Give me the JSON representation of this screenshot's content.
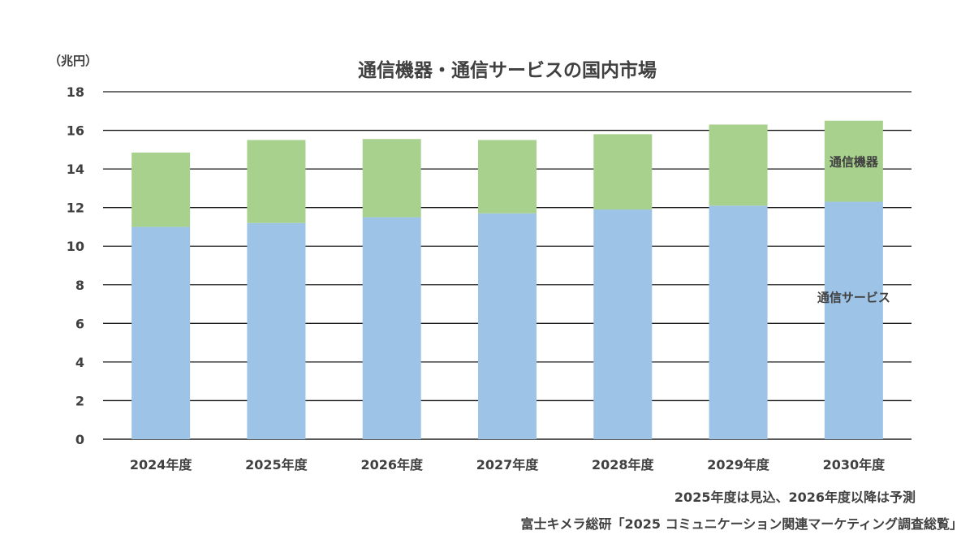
{
  "chart_data": {
    "type": "bar",
    "stacked": true,
    "title": "通信機器・通信サービスの国内市場",
    "unit_label": "（兆円）",
    "categories": [
      "2024年度",
      "2025年度",
      "2026年度",
      "2027年度",
      "2028年度",
      "2029年度",
      "2030年度"
    ],
    "series": [
      {
        "name": "通信サービス",
        "color": "#9dc3e6",
        "values": [
          11.0,
          11.2,
          11.5,
          11.7,
          11.9,
          12.1,
          12.3
        ]
      },
      {
        "name": "通信機器",
        "color": "#a9d18e",
        "values": [
          3.85,
          4.3,
          4.05,
          3.8,
          3.9,
          4.2,
          4.2
        ]
      }
    ],
    "ylim": [
      0,
      18
    ],
    "yticks": [
      0,
      2,
      4,
      6,
      8,
      10,
      12,
      14,
      16,
      18
    ],
    "grid": true,
    "legend": "inline-right"
  },
  "notes": {
    "forecast_note": "2025年度は見込、2026年度以降は予測",
    "source": "富士キメラ総研「2025 コミュニケーション関連マーケティング調査総覧」"
  }
}
